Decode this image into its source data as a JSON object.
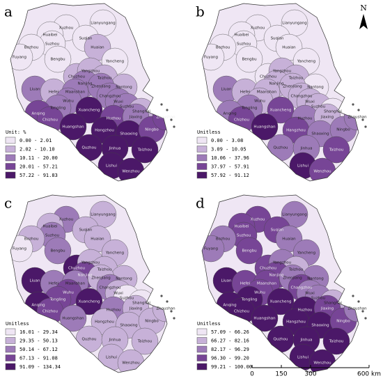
{
  "north": "N",
  "scale_bar": {
    "labels": [
      "0",
      "150",
      "300",
      "600 km"
    ]
  },
  "cities": [
    "Xuzhou",
    "Lianyungang",
    "Suqian",
    "Huaibei",
    "Suzhou",
    "Bozhou",
    "Fuyang",
    "Bengbu",
    "Huaian",
    "Yancheng",
    "Chuzhou",
    "Yangzhou",
    "Taizhou",
    "Nantong",
    "Liuan",
    "Hefei",
    "Nanjing",
    "Maanshan",
    "Zhenjiang",
    "Changzhou",
    "Wuxi",
    "Suzhou",
    "Shanghai",
    "Wuhu",
    "Tongling",
    "Anqing",
    "Chizhou",
    "Xuancheng",
    "Huangshan",
    "Huzhou",
    "Jiaxing",
    "Hangzhou",
    "Shaoxing",
    "Ningbo",
    "Zhoushan",
    "Quzhou",
    "Jinhua",
    "Taizhou",
    "Lishui",
    "Wenzhou"
  ],
  "panels": [
    {
      "letter": "a",
      "legend_title": "Unit: %",
      "legend": [
        {
          "label": "0.00 - 2.01",
          "color": "#efe6f4"
        },
        {
          "label": "2.02 - 10.10",
          "color": "#c7b1d8"
        },
        {
          "label": "10.11 - 20.00",
          "color": "#9d7bb8"
        },
        {
          "label": "20.01 - 57.21",
          "color": "#774596"
        },
        {
          "label": "57.22 - 91.83",
          "color": "#4b1868"
        }
      ],
      "classes": [
        0,
        0,
        0,
        0,
        0,
        0,
        0,
        0,
        1,
        0,
        1,
        1,
        1,
        1,
        2,
        1,
        2,
        2,
        2,
        2,
        2,
        2,
        1,
        2,
        2,
        3,
        3,
        4,
        4,
        3,
        2,
        4,
        4,
        3,
        3,
        4,
        4,
        4,
        4,
        4
      ]
    },
    {
      "letter": "b",
      "legend_title": "Unitless",
      "legend": [
        {
          "label": "0.00 - 3.08",
          "color": "#efe6f4"
        },
        {
          "label": "3.09 - 10.05",
          "color": "#c7b1d8"
        },
        {
          "label": "10.06 - 37.96",
          "color": "#9d7bb8"
        },
        {
          "label": "37.97 - 57.91",
          "color": "#774596"
        },
        {
          "label": "57.92 - 91.12",
          "color": "#4b1868"
        }
      ],
      "classes": [
        0,
        0,
        0,
        0,
        0,
        0,
        0,
        0,
        0,
        0,
        0,
        1,
        1,
        0,
        2,
        1,
        1,
        1,
        1,
        1,
        1,
        1,
        0,
        1,
        2,
        2,
        3,
        3,
        4,
        2,
        1,
        3,
        2,
        2,
        2,
        2,
        2,
        3,
        4,
        3
      ]
    },
    {
      "letter": "c",
      "legend_title": "Unitless",
      "legend": [
        {
          "label": "16.01 - 29.34",
          "color": "#efe6f4"
        },
        {
          "label": "29.35 - 50.13",
          "color": "#c7b1d8"
        },
        {
          "label": "50.14 - 67.12",
          "color": "#9d7bb8"
        },
        {
          "label": "67.13 - 91.08",
          "color": "#774596"
        },
        {
          "label": "91.09 - 134.34",
          "color": "#4b1868"
        }
      ],
      "classes": [
        2,
        1,
        1,
        1,
        2,
        1,
        0,
        2,
        1,
        1,
        4,
        1,
        1,
        1,
        4,
        2,
        3,
        2,
        1,
        2,
        1,
        0,
        0,
        3,
        3,
        4,
        3,
        4,
        2,
        2,
        1,
        1,
        1,
        1,
        1,
        1,
        1,
        1,
        1,
        1
      ]
    },
    {
      "letter": "d",
      "legend_title": "Unitless",
      "legend": [
        {
          "label": "57.09 - 66.26",
          "color": "#efe6f4"
        },
        {
          "label": "66.27 - 82.16",
          "color": "#c7b1d8"
        },
        {
          "label": "82.17 - 96.29",
          "color": "#9d7bb8"
        },
        {
          "label": "96.30 - 99.20",
          "color": "#774596"
        },
        {
          "label": "99.21 - 100.00",
          "color": "#4b1868"
        }
      ],
      "classes": [
        3,
        2,
        3,
        3,
        3,
        2,
        2,
        3,
        2,
        2,
        3,
        2,
        1,
        2,
        4,
        3,
        3,
        3,
        2,
        3,
        2,
        2,
        1,
        3,
        4,
        4,
        4,
        4,
        4,
        4,
        3,
        4,
        4,
        3,
        2,
        4,
        4,
        4,
        4,
        4
      ]
    }
  ]
}
